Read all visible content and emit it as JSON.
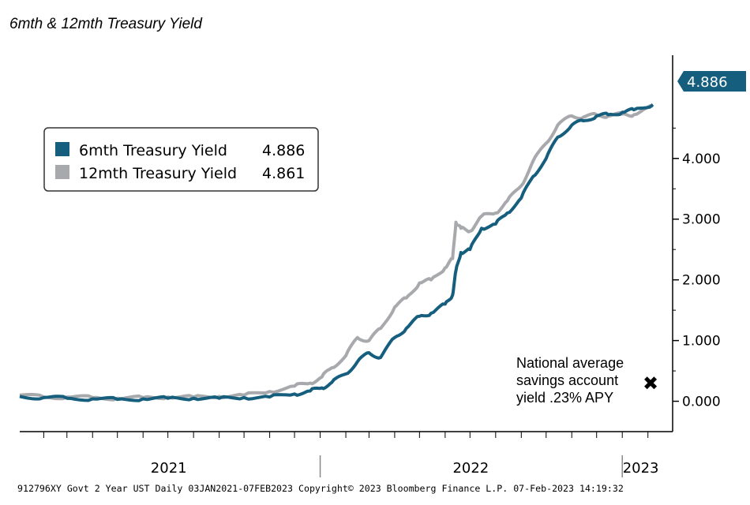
{
  "title": "6mth & 12mth Treasury Yield",
  "footer": "912796XY Govt 2 Year UST  Daily 03JAN2021-07FEB2023 Copyright© 2023 Bloomberg Finance L.P. 07-Feb-2023 14:19:32",
  "annotation": {
    "lines": [
      "National average",
      "savings account",
      "yield .23% APY"
    ],
    "marker": "✖"
  },
  "last_value_badge": "4.886",
  "colors": {
    "six_month": "#155e7e",
    "twelve_month": "#a7a9ac",
    "badge_bg": "#155e7e",
    "axis": "#000000"
  },
  "chart_data": {
    "type": "line",
    "x_range": [
      "2021-01-03",
      "2023-02-07"
    ],
    "x_tick_labels": [
      "2021",
      "2022",
      "2023"
    ],
    "y_ticks": [
      "0.000",
      "1.000",
      "2.000",
      "3.000",
      "4.000"
    ],
    "ylim": [
      -0.5,
      5.7
    ],
    "grid": false,
    "legend_position": "top-left",
    "series": [
      {
        "name": "6mth Treasury Yield",
        "last_value": "4.886",
        "points": [
          [
            "2021-01-03",
            0.08
          ],
          [
            "2021-02-01",
            0.06
          ],
          [
            "2021-03-01",
            0.05
          ],
          [
            "2021-04-01",
            0.04
          ],
          [
            "2021-05-01",
            0.03
          ],
          [
            "2021-06-01",
            0.04
          ],
          [
            "2021-07-01",
            0.05
          ],
          [
            "2021-08-01",
            0.05
          ],
          [
            "2021-09-01",
            0.05
          ],
          [
            "2021-10-01",
            0.06
          ],
          [
            "2021-11-01",
            0.07
          ],
          [
            "2021-12-01",
            0.12
          ],
          [
            "2021-12-20",
            0.17
          ],
          [
            "2022-01-03",
            0.22
          ],
          [
            "2022-01-15",
            0.31
          ],
          [
            "2022-02-01",
            0.45
          ],
          [
            "2022-02-15",
            0.65
          ],
          [
            "2022-03-01",
            0.8
          ],
          [
            "2022-03-15",
            0.72
          ],
          [
            "2022-04-01",
            1.05
          ],
          [
            "2022-04-15",
            1.2
          ],
          [
            "2022-05-01",
            1.4
          ],
          [
            "2022-05-15",
            1.45
          ],
          [
            "2022-06-01",
            1.6
          ],
          [
            "2022-06-10",
            1.75
          ],
          [
            "2022-06-14",
            2.15
          ],
          [
            "2022-06-20",
            2.45
          ],
          [
            "2022-07-01",
            2.5
          ],
          [
            "2022-07-15",
            2.85
          ],
          [
            "2022-08-01",
            2.92
          ],
          [
            "2022-08-15",
            3.1
          ],
          [
            "2022-09-01",
            3.35
          ],
          [
            "2022-09-15",
            3.7
          ],
          [
            "2022-10-01",
            4.0
          ],
          [
            "2022-10-15",
            4.35
          ],
          [
            "2022-11-01",
            4.55
          ],
          [
            "2022-11-15",
            4.62
          ],
          [
            "2022-12-01",
            4.7
          ],
          [
            "2022-12-15",
            4.72
          ],
          [
            "2023-01-01",
            4.76
          ],
          [
            "2023-01-15",
            4.8
          ],
          [
            "2023-02-07",
            4.886
          ]
        ]
      },
      {
        "name": "12mth Treasury Yield",
        "last_value": "4.861",
        "points": [
          [
            "2021-01-03",
            0.1
          ],
          [
            "2021-02-01",
            0.07
          ],
          [
            "2021-03-01",
            0.07
          ],
          [
            "2021-04-01",
            0.06
          ],
          [
            "2021-05-01",
            0.05
          ],
          [
            "2021-06-01",
            0.06
          ],
          [
            "2021-07-01",
            0.07
          ],
          [
            "2021-08-01",
            0.07
          ],
          [
            "2021-09-01",
            0.08
          ],
          [
            "2021-10-01",
            0.1
          ],
          [
            "2021-11-01",
            0.16
          ],
          [
            "2021-12-01",
            0.25
          ],
          [
            "2021-12-20",
            0.3
          ],
          [
            "2022-01-03",
            0.4
          ],
          [
            "2022-01-15",
            0.55
          ],
          [
            "2022-02-01",
            0.75
          ],
          [
            "2022-02-15",
            1.05
          ],
          [
            "2022-03-01",
            1.0
          ],
          [
            "2022-03-15",
            1.2
          ],
          [
            "2022-04-01",
            1.55
          ],
          [
            "2022-04-15",
            1.7
          ],
          [
            "2022-05-01",
            1.95
          ],
          [
            "2022-05-15",
            2.0
          ],
          [
            "2022-06-01",
            2.2
          ],
          [
            "2022-06-10",
            2.35
          ],
          [
            "2022-06-14",
            2.95
          ],
          [
            "2022-06-20",
            2.85
          ],
          [
            "2022-07-01",
            2.8
          ],
          [
            "2022-07-15",
            3.05
          ],
          [
            "2022-08-01",
            3.1
          ],
          [
            "2022-08-15",
            3.3
          ],
          [
            "2022-09-01",
            3.55
          ],
          [
            "2022-09-15",
            3.95
          ],
          [
            "2022-10-01",
            4.25
          ],
          [
            "2022-10-15",
            4.55
          ],
          [
            "2022-11-01",
            4.7
          ],
          [
            "2022-11-15",
            4.68
          ],
          [
            "2022-12-01",
            4.72
          ],
          [
            "2022-12-15",
            4.7
          ],
          [
            "2023-01-01",
            4.73
          ],
          [
            "2023-01-15",
            4.72
          ],
          [
            "2023-02-07",
            4.861
          ]
        ]
      }
    ]
  }
}
